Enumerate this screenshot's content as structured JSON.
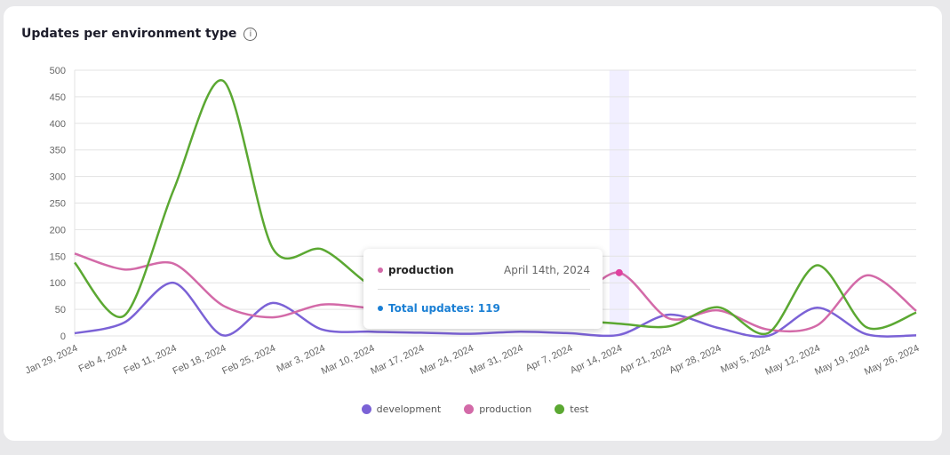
{
  "chart_data": {
    "type": "line",
    "title": "Updates per environment type",
    "categories": [
      "Jan 29, 2024",
      "Feb 4, 2024",
      "Feb 11, 2024",
      "Feb 18, 2024",
      "Feb 25, 2024",
      "Mar 3, 2024",
      "Mar 10, 2024",
      "Mar 17, 2024",
      "Mar 24, 2024",
      "Mar 31, 2024",
      "Apr 7, 2024",
      "Apr 14, 2024",
      "Apr 21, 2024",
      "Apr 28, 2024",
      "May 5, 2024",
      "May 12, 2024",
      "May 19, 2024",
      "May 26, 2024"
    ],
    "ylim": [
      0,
      500
    ],
    "yticks": [
      0,
      50,
      100,
      150,
      200,
      250,
      300,
      350,
      400,
      450,
      500
    ],
    "grid": true,
    "legend": "bottom",
    "series": [
      {
        "name": "development",
        "color": "#7b62d6",
        "values": [
          5,
          25,
          100,
          1,
          62,
          12,
          8,
          6,
          4,
          8,
          5,
          2,
          40,
          15,
          0,
          53,
          3,
          1
        ]
      },
      {
        "name": "production",
        "color": "#d36aa8",
        "values": [
          155,
          125,
          136,
          57,
          35,
          59,
          52,
          45,
          39,
          138,
          70,
          119,
          33,
          48,
          12,
          20,
          114,
          47
        ]
      },
      {
        "name": "test",
        "color": "#5ba832",
        "values": [
          138,
          38,
          275,
          480,
          165,
          163,
          93,
          50,
          40,
          35,
          30,
          23,
          18,
          54,
          5,
          133,
          16,
          44
        ]
      }
    ]
  },
  "tooltip": {
    "series": "production",
    "date": "April 14th, 2024",
    "total": "Total updates: 119",
    "highlight_index": 11,
    "series_color": "#d36aa8",
    "total_color": "#1a7fd4"
  },
  "info_icon": "info-circle-icon"
}
